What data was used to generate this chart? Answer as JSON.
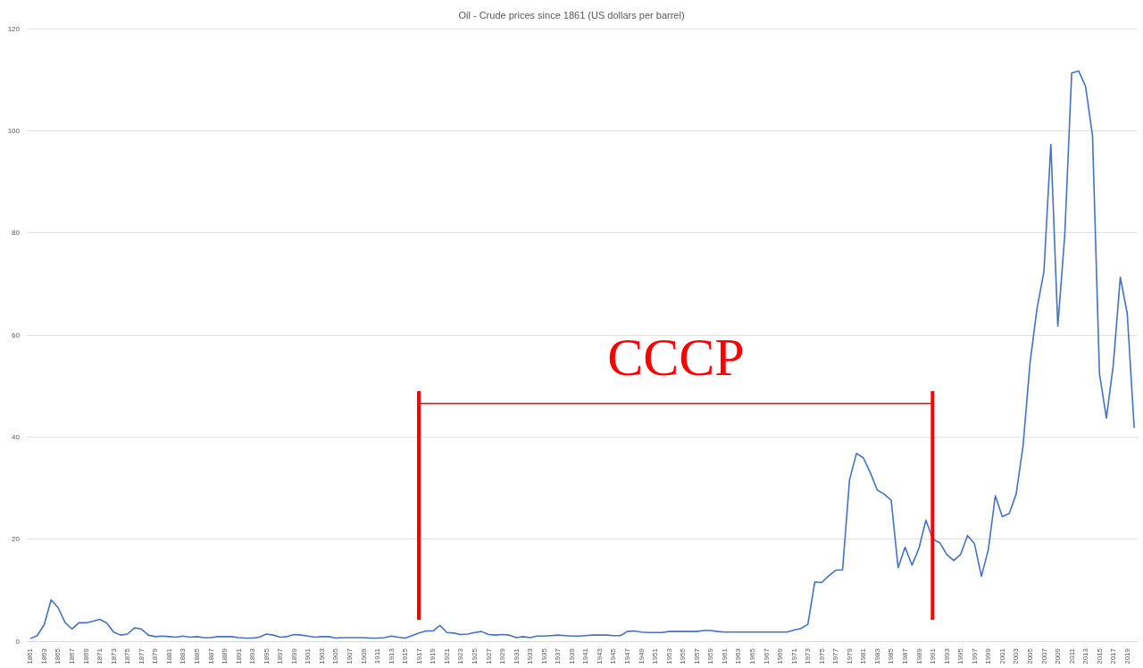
{
  "chart_data": {
    "type": "line",
    "title": "Oil - Crude prices since 1861 (US dollars per barrel)",
    "categories": [
      "1861",
      null,
      "1863",
      null,
      "1865",
      null,
      "1867",
      null,
      "1869",
      null,
      "1871",
      null,
      "1873",
      null,
      "1875",
      null,
      "1877",
      null,
      "1879",
      null,
      "1881",
      null,
      "1883",
      null,
      "1885",
      null,
      "1887",
      null,
      "1889",
      null,
      "1891",
      null,
      "1893",
      null,
      "1895",
      null,
      "1897",
      null,
      "1899",
      null,
      "1901",
      null,
      "1903",
      null,
      "1905",
      null,
      "1907",
      null,
      "1909",
      null,
      "1911",
      null,
      "1913",
      null,
      "1915",
      null,
      "1917",
      null,
      "1919",
      null,
      "1921",
      null,
      "1923",
      null,
      "1925",
      null,
      "1927",
      null,
      "1929",
      null,
      "1931",
      null,
      "1933",
      null,
      "1935",
      null,
      "1937",
      null,
      "1939",
      null,
      "1941",
      null,
      "1943",
      null,
      "1945",
      null,
      "1947",
      null,
      "1949",
      null,
      "1951",
      null,
      "1953",
      null,
      "1955",
      null,
      "1957",
      null,
      "1959",
      null,
      "1961",
      null,
      "1963",
      null,
      "1965",
      null,
      "1967",
      null,
      "1969",
      null,
      "1971",
      null,
      "1973",
      null,
      "1975",
      null,
      "1977",
      null,
      "1979",
      null,
      "1981",
      null,
      "1983",
      null,
      "1985",
      null,
      "1987",
      null,
      "1989",
      null,
      "1991",
      null,
      "1993",
      null,
      "1995",
      null,
      "1997",
      null,
      "1999",
      null,
      "2001",
      null,
      "2003",
      null,
      "2005",
      null,
      "2007",
      null,
      "2009",
      null,
      "2011",
      null,
      "2013",
      null,
      "2015",
      null,
      "2017",
      null,
      "2019",
      null
    ],
    "series": [
      {
        "color": "#4472c4",
        "values": [
          0.5,
          1.1,
          3.2,
          8.1,
          6.6,
          3.7,
          2.4,
          3.6,
          3.6,
          3.9,
          4.3,
          3.6,
          1.8,
          1.2,
          1.4,
          2.6,
          2.4,
          1.2,
          0.9,
          1.0,
          0.9,
          0.8,
          1.0,
          0.8,
          0.9,
          0.7,
          0.7,
          0.9,
          0.9,
          0.9,
          0.7,
          0.6,
          0.6,
          0.8,
          1.4,
          1.2,
          0.8,
          0.9,
          1.3,
          1.2,
          1.0,
          0.8,
          0.9,
          0.9,
          0.6,
          0.7,
          0.7,
          0.7,
          0.7,
          0.6,
          0.6,
          0.7,
          1.0,
          0.8,
          0.6,
          1.1,
          1.6,
          2.0,
          2.0,
          3.1,
          1.7,
          1.6,
          1.3,
          1.4,
          1.7,
          1.9,
          1.3,
          1.2,
          1.3,
          1.2,
          0.7,
          0.9,
          0.7,
          1.0,
          1.0,
          1.1,
          1.2,
          1.1,
          1.0,
          1.0,
          1.1,
          1.2,
          1.2,
          1.2,
          1.1,
          1.1,
          1.9,
          2.0,
          1.8,
          1.7,
          1.7,
          1.7,
          1.9,
          1.9,
          1.9,
          1.9,
          1.9,
          2.1,
          2.1,
          1.9,
          1.8,
          1.8,
          1.8,
          1.8,
          1.8,
          1.8,
          1.8,
          1.8,
          1.8,
          1.8,
          2.2,
          2.5,
          3.3,
          11.6,
          11.5,
          12.8,
          13.9,
          14.0,
          31.6,
          36.8,
          35.9,
          33.0,
          29.6,
          28.8,
          27.6,
          14.4,
          18.4,
          14.9,
          18.2,
          23.7,
          20.0,
          19.3,
          17.0,
          15.8,
          17.0,
          20.7,
          19.1,
          12.7,
          18.0,
          28.5,
          24.4,
          25.0,
          28.8,
          38.3,
          54.5,
          65.1,
          72.4,
          97.3,
          61.7,
          79.5,
          111.3,
          111.7,
          108.7,
          99.0,
          52.4,
          43.7,
          54.2,
          71.3,
          64.2,
          41.8
        ]
      }
    ],
    "ylim": [
      0,
      120
    ],
    "yticks": [
      0,
      20,
      40,
      60,
      80,
      100,
      120
    ],
    "grid": "y",
    "annotations": [
      "СССР"
    ]
  }
}
